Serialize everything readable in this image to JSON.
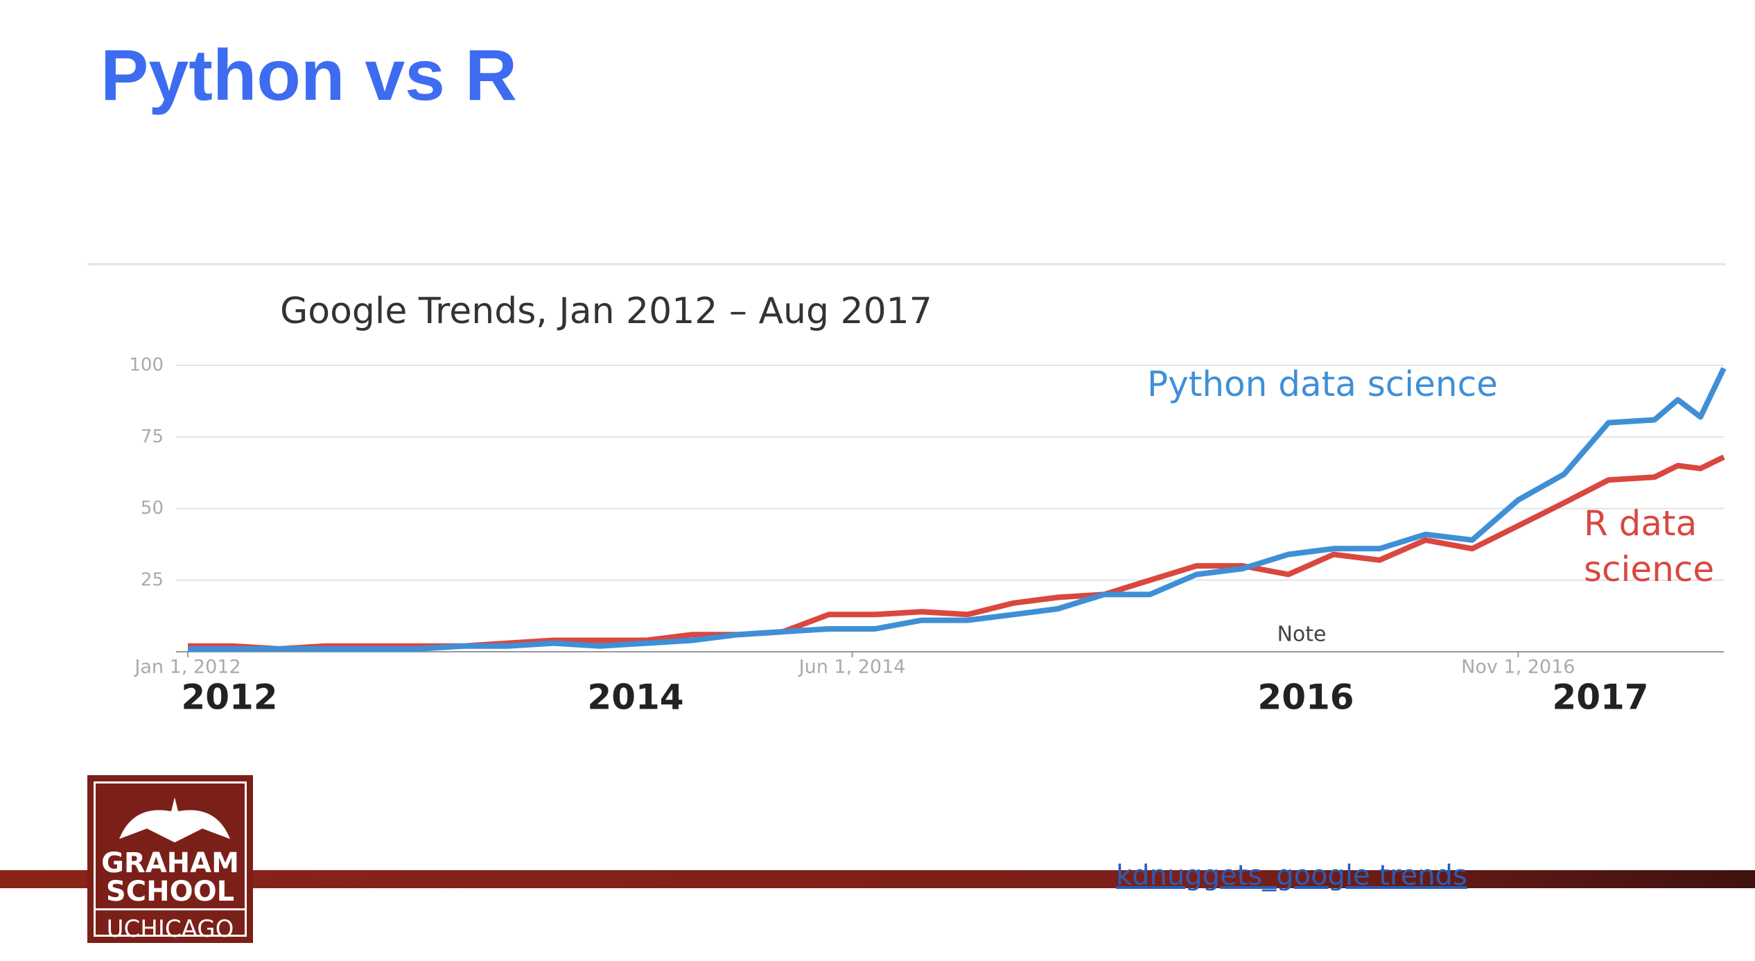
{
  "slide_title": "Python vs R",
  "chart_data": {
    "type": "line",
    "title": "Google Trends, Jan 2012 –  Aug 2017",
    "x": [
      "2012-01-01",
      "2012-03-01",
      "2012-05-01",
      "2012-07-01",
      "2012-09-01",
      "2012-11-01",
      "2013-01-01",
      "2013-03-01",
      "2013-05-01",
      "2013-07-01",
      "2013-09-01",
      "2013-11-01",
      "2014-01-01",
      "2014-03-01",
      "2014-05-01",
      "2014-07-01",
      "2014-09-01",
      "2014-11-01",
      "2015-01-01",
      "2015-03-01",
      "2015-05-01",
      "2015-07-01",
      "2015-09-01",
      "2015-11-01",
      "2016-01-01",
      "2016-03-01",
      "2016-05-01",
      "2016-07-01",
      "2016-09-01",
      "2016-11-01",
      "2017-01-01",
      "2017-03-01",
      "2017-05-01",
      "2017-06-01",
      "2017-07-01",
      "2017-08-01"
    ],
    "series": [
      {
        "name": "Python data science",
        "color": "#3f8fd6",
        "values": [
          1,
          1,
          1,
          1,
          1,
          1,
          2,
          2,
          3,
          2,
          3,
          4,
          6,
          7,
          8,
          8,
          11,
          11,
          13,
          15,
          20,
          20,
          27,
          29,
          34,
          36,
          36,
          41,
          39,
          53,
          62,
          80,
          81,
          88,
          82,
          99
        ]
      },
      {
        "name": "R data science",
        "color": "#d9473f",
        "values": [
          2,
          2,
          1,
          2,
          2,
          2,
          2,
          3,
          4,
          4,
          4,
          6,
          6,
          7,
          13,
          13,
          14,
          13,
          17,
          19,
          20,
          25,
          30,
          30,
          27,
          34,
          32,
          39,
          36,
          44,
          52,
          60,
          61,
          65,
          64,
          68
        ]
      }
    ],
    "xlim": [
      "2012-01-01",
      "2017-08-01"
    ],
    "xticks": [
      {
        "value": "2012-01-01",
        "label": "Jan 1, 2012"
      },
      {
        "value": "2014-06-01",
        "label": "Jun 1, 2014"
      },
      {
        "value": "2016-11-01",
        "label": "Nov 1, 2016"
      }
    ],
    "ylim": [
      0,
      100
    ],
    "yticks": [
      25,
      50,
      75,
      100
    ],
    "grid": true,
    "annotations": [
      "2012",
      "2014",
      "2016",
      "2017"
    ],
    "note": "Note"
  },
  "logo": {
    "line1": "GRAHAM",
    "line2": "SCHOOL",
    "line3": "UCHICAGO"
  },
  "link": "kdnuggets_google trends"
}
